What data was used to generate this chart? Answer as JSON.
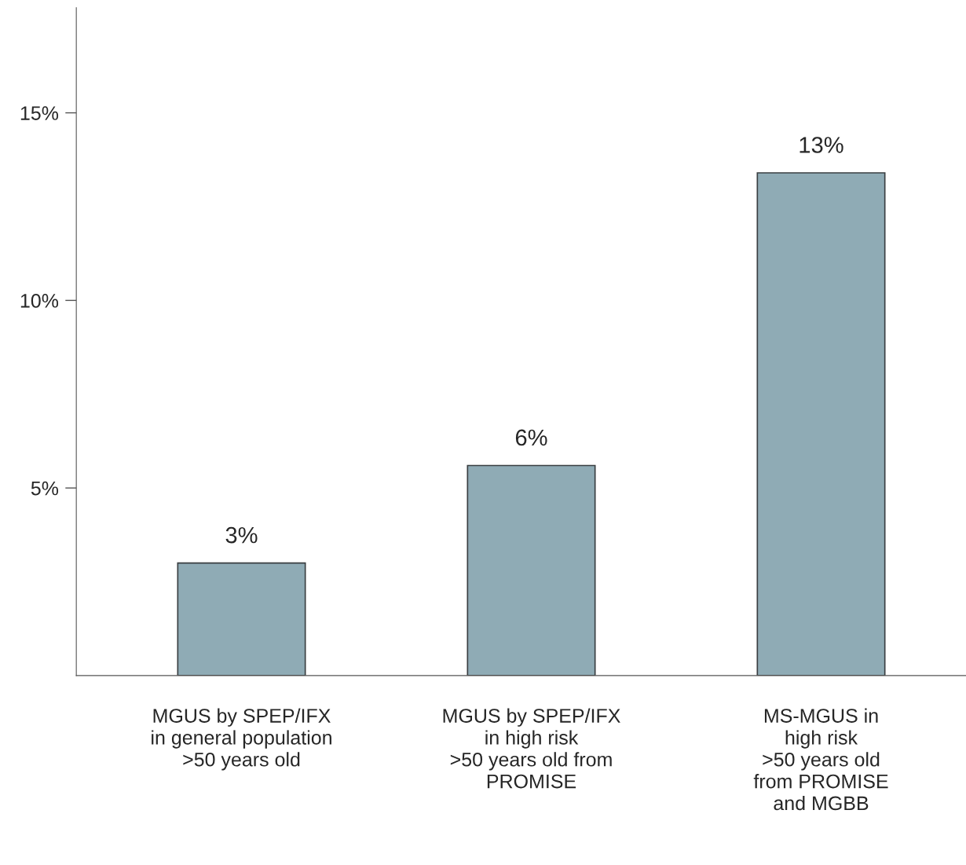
{
  "chart_data": {
    "type": "bar",
    "categories": [
      "MGUS by SPEP/IFX\nin general population\n>50 years old",
      "MGUS by SPEP/IFX\nin high risk\n>50 years old from\nPROMISE",
      "MS-MGUS in\nhigh risk\n>50 years old\nfrom PROMISE\nand MGBB"
    ],
    "values": [
      3,
      5.6,
      13.4
    ],
    "value_labels": [
      "3%",
      "6%",
      "13%"
    ],
    "color": "#8fabb5",
    "ylim": [
      0,
      17.8
    ],
    "yticks": [
      {
        "value": 5,
        "label": "5%"
      },
      {
        "value": 10,
        "label": "10%"
      },
      {
        "value": 15,
        "label": "15%"
      }
    ],
    "grid": false
  }
}
